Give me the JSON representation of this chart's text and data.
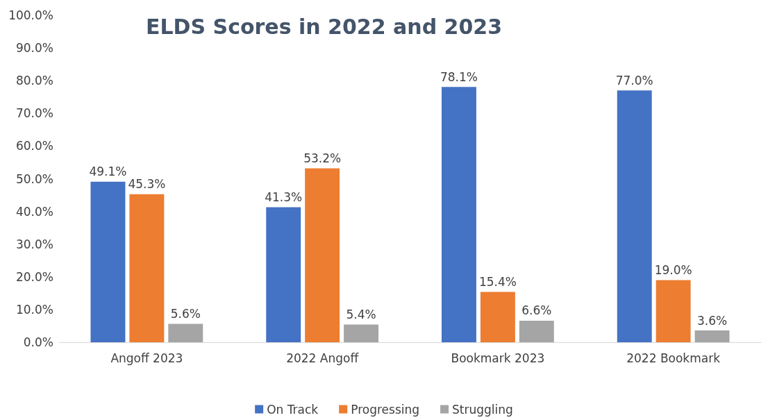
{
  "chart_data": {
    "type": "bar",
    "title": "ELDS Scores in 2022 and 2023",
    "categories": [
      "Angoff 2023",
      "2022 Angoff",
      "Bookmark 2023",
      "2022 Bookmark"
    ],
    "series": [
      {
        "name": "On Track",
        "color": "#4472c4",
        "values": [
          49.1,
          41.3,
          78.1,
          77.0
        ],
        "value_labels": [
          "49.1%",
          "41.3%",
          "78.1%",
          "77.0%"
        ]
      },
      {
        "name": "Progressing",
        "color": "#ed7d31",
        "values": [
          45.3,
          53.2,
          15.4,
          19.0
        ],
        "value_labels": [
          "45.3%",
          "53.2%",
          "15.4%",
          "19.0%"
        ]
      },
      {
        "name": "Struggling",
        "color": "#a5a5a5",
        "values": [
          5.6,
          5.4,
          6.6,
          3.6
        ],
        "value_labels": [
          "5.6%",
          "5.4%",
          "6.6%",
          "3.6%"
        ]
      }
    ],
    "ylim": [
      0,
      100
    ],
    "yticks": [
      {
        "value": 0,
        "label": "0.0%"
      },
      {
        "value": 10,
        "label": "10.0%"
      },
      {
        "value": 20,
        "label": "20.0%"
      },
      {
        "value": 30,
        "label": "30.0%"
      },
      {
        "value": 40,
        "label": "40.0%"
      },
      {
        "value": 50,
        "label": "50.0%"
      },
      {
        "value": 60,
        "label": "60.0%"
      },
      {
        "value": 70,
        "label": "70.0%"
      },
      {
        "value": 80,
        "label": "80.0%"
      },
      {
        "value": 90,
        "label": "90.0%"
      },
      {
        "value": 100,
        "label": "100.0%"
      }
    ],
    "grid": false,
    "legend": "bottom"
  }
}
